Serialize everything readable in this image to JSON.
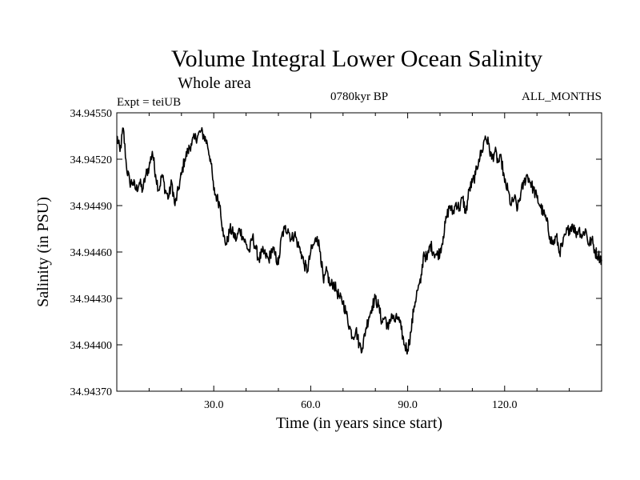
{
  "chart_data": {
    "type": "line",
    "title": "Volume Integral Lower Ocean Salinity",
    "subtitle": "Whole area",
    "header_left": "Expt = teiUB",
    "header_center": "0780kyr BP",
    "header_right": "ALL_MONTHS",
    "xlabel": "Time (in years since start)",
    "ylabel": "Salinity (in PSU)",
    "xlim": [
      0,
      150
    ],
    "ylim": [
      34.9437,
      34.9455
    ],
    "xticks": [
      30,
      60,
      90,
      120
    ],
    "xtick_labels": [
      "30.0",
      "60.0",
      "90.0",
      "120.0"
    ],
    "yticks": [
      34.9437,
      34.944,
      34.9443,
      34.9446,
      34.9449,
      34.9452,
      34.9455
    ],
    "ytick_labels": [
      "34.94370",
      "34.94400",
      "34.94430",
      "34.94460",
      "34.94490",
      "34.94520",
      "34.94550"
    ],
    "grid": false,
    "series": [
      {
        "name": "Salinity",
        "x": [
          0,
          1,
          2,
          3,
          4,
          5,
          6,
          7,
          8,
          9,
          10,
          11,
          12,
          13,
          14,
          15,
          16,
          17,
          18,
          19,
          20,
          21,
          22,
          23,
          24,
          25,
          26,
          27,
          28,
          29,
          30,
          31,
          32,
          33,
          34,
          35,
          36,
          37,
          38,
          39,
          40,
          41,
          42,
          43,
          44,
          45,
          46,
          47,
          48,
          49,
          50,
          51,
          52,
          53,
          54,
          55,
          56,
          57,
          58,
          59,
          60,
          61,
          62,
          63,
          64,
          65,
          66,
          67,
          68,
          69,
          70,
          71,
          72,
          73,
          74,
          75,
          76,
          77,
          78,
          79,
          80,
          81,
          82,
          83,
          84,
          85,
          86,
          87,
          88,
          89,
          90,
          91,
          92,
          93,
          94,
          95,
          96,
          97,
          98,
          99,
          100,
          101,
          102,
          103,
          104,
          105,
          106,
          107,
          108,
          109,
          110,
          111,
          112,
          113,
          114,
          115,
          116,
          117,
          118,
          119,
          120,
          121,
          122,
          123,
          124,
          125,
          126,
          127,
          128,
          129,
          130,
          131,
          132,
          133,
          134,
          135,
          136,
          137,
          138,
          139,
          140,
          141,
          142,
          143,
          144,
          145,
          146,
          147,
          148,
          149,
          150
        ],
        "values": [
          34.94535,
          34.94525,
          34.9454,
          34.94515,
          34.94505,
          34.94505,
          34.945,
          34.94505,
          34.945,
          34.9451,
          34.94515,
          34.94525,
          34.9451,
          34.945,
          34.9451,
          34.945,
          34.94495,
          34.94505,
          34.9449,
          34.945,
          34.9451,
          34.9452,
          34.94525,
          34.9453,
          34.94533,
          34.94535,
          34.94538,
          34.94535,
          34.9453,
          34.9452,
          34.945,
          34.94495,
          34.9449,
          34.9447,
          34.94465,
          34.94475,
          34.94472,
          34.94468,
          34.94475,
          34.9447,
          34.94465,
          34.9446,
          34.9447,
          34.94462,
          34.94455,
          34.9446,
          34.94458,
          34.94455,
          34.94462,
          34.94458,
          34.94452,
          34.9447,
          34.94475,
          34.94475,
          34.94468,
          34.94472,
          34.94465,
          34.9446,
          34.94452,
          34.94448,
          34.9446,
          34.94465,
          34.9447,
          34.9446,
          34.9444,
          34.94448,
          34.94438,
          34.9444,
          34.94435,
          34.9443,
          34.94428,
          34.9442,
          34.94412,
          34.94405,
          34.9441,
          34.944,
          34.94398,
          34.9441,
          34.94418,
          34.94425,
          34.9443,
          34.94425,
          34.94415,
          34.94418,
          34.9441,
          34.9442,
          34.94415,
          34.94418,
          34.9441,
          34.944,
          34.94397,
          34.94408,
          34.94425,
          34.94435,
          34.9444,
          34.9446,
          34.94455,
          34.94465,
          34.9446,
          34.94458,
          34.9446,
          34.9447,
          34.94482,
          34.9449,
          34.94485,
          34.94492,
          34.94488,
          34.94495,
          34.94485,
          34.945,
          34.94505,
          34.9451,
          34.9452,
          34.94525,
          34.94535,
          34.9453,
          34.9452,
          34.94525,
          34.94518,
          34.9452,
          34.94505,
          34.945,
          34.9449,
          34.94495,
          34.94488,
          34.94498,
          34.94505,
          34.9451,
          34.94505,
          34.945,
          34.94495,
          34.9449,
          34.94485,
          34.9448,
          34.9447,
          34.94465,
          34.9447,
          34.9446,
          34.94465,
          34.94472,
          34.94475,
          34.94478,
          34.94472,
          34.94475,
          34.9447,
          34.94475,
          34.94465,
          34.94468,
          34.9446,
          34.94458,
          34.94455
        ]
      }
    ]
  }
}
